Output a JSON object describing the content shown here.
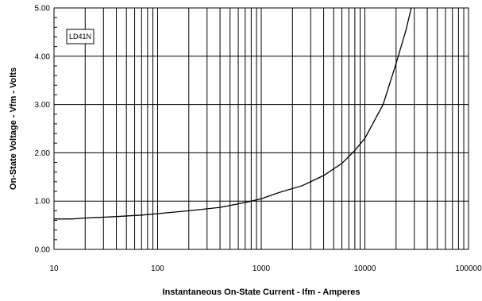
{
  "chart_data": {
    "type": "line",
    "xlabel": "Instantaneous On-State Current  -  Ifm  -  Amperes",
    "ylabel": "On-State Voltage  -  Vfm  -  Volts",
    "x_scale": "log",
    "xlim": [
      10,
      100000
    ],
    "ylim": [
      0,
      5
    ],
    "x_ticks": [
      10,
      100,
      1000,
      10000,
      100000
    ],
    "x_tick_labels": [
      "10",
      "100",
      "1000",
      "10000",
      "100000"
    ],
    "y_ticks": [
      0,
      1,
      2,
      3,
      4,
      5
    ],
    "y_tick_labels": [
      "0.00",
      "1.00",
      "2.00",
      "3.00",
      "4.00",
      "5.00"
    ],
    "grid": true,
    "legend_position": "top-left",
    "series": [
      {
        "name": "LD41N",
        "color": "#000000",
        "points": [
          [
            10,
            0.63
          ],
          [
            15,
            0.63
          ],
          [
            20,
            0.65
          ],
          [
            40,
            0.68
          ],
          [
            70,
            0.71
          ],
          [
            100,
            0.74
          ],
          [
            200,
            0.8
          ],
          [
            400,
            0.87
          ],
          [
            700,
            0.97
          ],
          [
            1000,
            1.05
          ],
          [
            1500,
            1.18
          ],
          [
            2500,
            1.32
          ],
          [
            4000,
            1.53
          ],
          [
            6000,
            1.78
          ],
          [
            8000,
            2.05
          ],
          [
            10000,
            2.3
          ],
          [
            15000,
            3.0
          ],
          [
            20000,
            3.85
          ],
          [
            25000,
            4.55
          ],
          [
            28000,
            5.0
          ]
        ]
      }
    ]
  }
}
